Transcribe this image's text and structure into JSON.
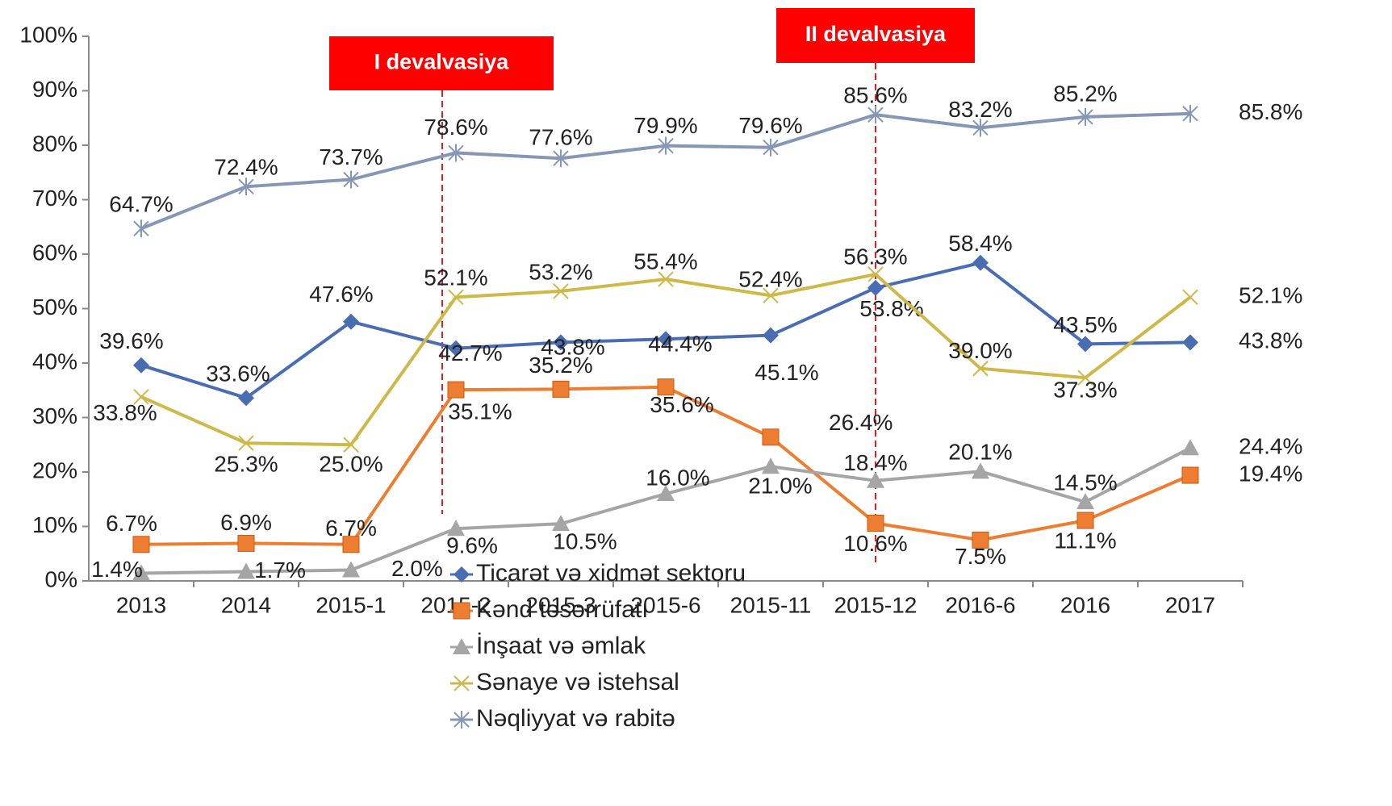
{
  "chart_data": {
    "type": "line",
    "categories": [
      "2013",
      "2014",
      "2015-1",
      "2015-2",
      "2015-3",
      "2015-6",
      "2015-11",
      "2015-12",
      "2016-6",
      "2016",
      "2017"
    ],
    "ylim": [
      0,
      100
    ],
    "yticks": [
      {
        "value": 0,
        "label": "0%"
      },
      {
        "value": 10,
        "label": "10%"
      },
      {
        "value": 20,
        "label": "20%"
      },
      {
        "value": 30,
        "label": "30%"
      },
      {
        "value": 40,
        "label": "40%"
      },
      {
        "value": 50,
        "label": "50%"
      },
      {
        "value": 60,
        "label": "60%"
      },
      {
        "value": 70,
        "label": "70%"
      },
      {
        "value": 80,
        "label": "80%"
      },
      {
        "value": 90,
        "label": "90%"
      },
      {
        "value": 100,
        "label": "100%"
      }
    ],
    "grid": false,
    "legend": "bottom",
    "annotations": [
      {
        "text": "I devalvasiya"
      },
      {
        "text": "II devalvasiya"
      }
    ],
    "series": [
      {
        "name": "Ticarət və xidmət sektoru",
        "color": "#4a6cb3",
        "marker": "diamond",
        "values": [
          39.6,
          33.6,
          47.6,
          42.7,
          43.8,
          44.4,
          45.1,
          53.8,
          58.4,
          43.5,
          43.8
        ],
        "value_labels": [
          "39.6%",
          "33.6%",
          "47.6%",
          "42.7%",
          "43.8%",
          "44.4%",
          "45.1%",
          "53.8%",
          "58.4%",
          "43.5%",
          "43.8%"
        ]
      },
      {
        "name": "Kənd təsərrüfatı",
        "color": "#ed7d31",
        "marker": "square",
        "values": [
          6.7,
          6.9,
          6.7,
          35.1,
          35.2,
          35.6,
          26.4,
          10.6,
          7.5,
          11.1,
          19.4
        ],
        "value_labels": [
          "6.7%",
          "6.9%",
          "6.7%",
          "35.1%",
          "35.2%",
          "35.6%",
          "26.4%",
          "10.6%",
          "7.5%",
          "11.1%",
          "19.4%"
        ]
      },
      {
        "name": "İnşaat və əmlak",
        "color": "#a5a5a5",
        "marker": "triangle",
        "values": [
          1.4,
          1.7,
          2.0,
          9.6,
          10.5,
          16.0,
          21.0,
          18.4,
          20.1,
          14.5,
          24.4
        ],
        "value_labels": [
          "1.4%",
          "1.7%",
          "2.0%",
          "9.6%",
          "10.5%",
          "16.0%",
          "21.0%",
          "18.4%",
          "20.1%",
          "14.5%",
          "24.4%"
        ]
      },
      {
        "name": "Sənaye və istehsal",
        "color": "#cdb84a",
        "marker": "x",
        "values": [
          33.8,
          25.3,
          25.0,
          52.1,
          53.2,
          55.4,
          52.4,
          56.3,
          39.0,
          37.3,
          52.1
        ],
        "value_labels": [
          "33.8%",
          "25.3%",
          "25.0%",
          "52.1%",
          "53.2%",
          "55.4%",
          "52.4%",
          "56.3%",
          "39.0%",
          "37.3%",
          "52.1%"
        ]
      },
      {
        "name": "Nəqliyyat və rabitə",
        "color": "#8597b5",
        "marker": "star",
        "values": [
          64.7,
          72.4,
          73.7,
          78.6,
          77.6,
          79.9,
          79.6,
          85.6,
          83.2,
          85.2,
          85.8
        ],
        "value_labels": [
          "64.7%",
          "72.4%",
          "73.7%",
          "78.6%",
          "77.6%",
          "79.9%",
          "79.6%",
          "85.6%",
          "83.2%",
          "85.2%",
          "85.8%"
        ]
      }
    ]
  }
}
